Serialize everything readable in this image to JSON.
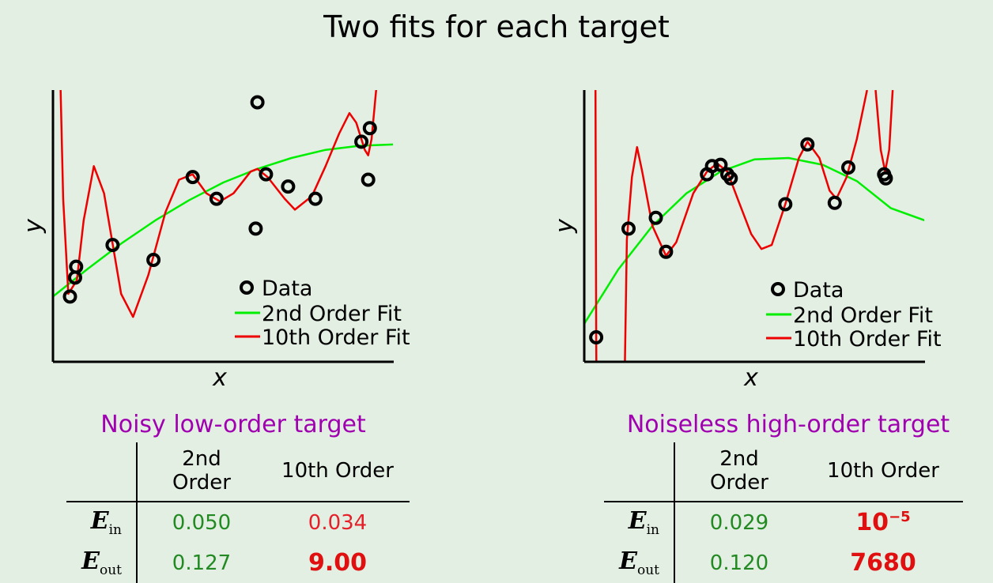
{
  "title": "Two fits for each target",
  "colors": {
    "background": "#e2efe2",
    "fit2": "#00ee00",
    "fit10": "#ee0000",
    "panel_title": "#a000b0",
    "good_value": "#238a23",
    "bad_value": "#e01010"
  },
  "chart_data": [
    {
      "type": "line",
      "title": "",
      "xlabel": "x",
      "ylabel": "y",
      "xlim": [
        0,
        1
      ],
      "ylim": [
        0,
        1
      ],
      "grid": false,
      "legend_placement": "bottom-right",
      "legend": [
        "Data",
        "2nd Order Fit",
        "10th Order Fit"
      ],
      "series": [
        {
          "name": "Data",
          "kind": "scatter",
          "points": [
            [
              0.05,
              0.24
            ],
            [
              0.065,
              0.31
            ],
            [
              0.068,
              0.35
            ],
            [
              0.175,
              0.43
            ],
            [
              0.295,
              0.375
            ],
            [
              0.41,
              0.68
            ],
            [
              0.48,
              0.6
            ],
            [
              0.595,
              0.49
            ],
            [
              0.6,
              0.955
            ],
            [
              0.625,
              0.69
            ],
            [
              0.69,
              0.645
            ],
            [
              0.77,
              0.6
            ],
            [
              0.905,
              0.81
            ],
            [
              0.925,
              0.67
            ],
            [
              0.93,
              0.86
            ]
          ]
        },
        {
          "name": "2nd Order Fit",
          "kind": "line",
          "points": [
            [
              0,
              0.24
            ],
            [
              0.1,
              0.34
            ],
            [
              0.2,
              0.435
            ],
            [
              0.3,
              0.52
            ],
            [
              0.4,
              0.595
            ],
            [
              0.5,
              0.66
            ],
            [
              0.6,
              0.71
            ],
            [
              0.7,
              0.75
            ],
            [
              0.8,
              0.78
            ],
            [
              0.9,
              0.795
            ],
            [
              1,
              0.8
            ]
          ]
        },
        {
          "name": "10th Order Fit",
          "kind": "line",
          "points": [
            [
              0.022,
              1.02
            ],
            [
              0.03,
              0.6
            ],
            [
              0.045,
              0.25
            ],
            [
              0.07,
              0.3
            ],
            [
              0.09,
              0.52
            ],
            [
              0.12,
              0.72
            ],
            [
              0.15,
              0.62
            ],
            [
              0.2,
              0.25
            ],
            [
              0.235,
              0.165
            ],
            [
              0.28,
              0.32
            ],
            [
              0.33,
              0.55
            ],
            [
              0.37,
              0.67
            ],
            [
              0.41,
              0.69
            ],
            [
              0.45,
              0.62
            ],
            [
              0.49,
              0.59
            ],
            [
              0.53,
              0.62
            ],
            [
              0.58,
              0.7
            ],
            [
              0.6,
              0.71
            ],
            [
              0.63,
              0.68
            ],
            [
              0.68,
              0.6
            ],
            [
              0.71,
              0.56
            ],
            [
              0.76,
              0.61
            ],
            [
              0.8,
              0.72
            ],
            [
              0.84,
              0.84
            ],
            [
              0.87,
              0.915
            ],
            [
              0.89,
              0.88
            ],
            [
              0.915,
              0.78
            ],
            [
              0.925,
              0.76
            ],
            [
              0.935,
              0.82
            ],
            [
              0.95,
              1.02
            ]
          ]
        }
      ]
    },
    {
      "type": "line",
      "title": "",
      "xlabel": "x",
      "ylabel": "y",
      "xlim": [
        0,
        1
      ],
      "ylim": [
        0,
        1
      ],
      "grid": false,
      "legend_placement": "bottom-right",
      "legend": [
        "Data",
        "2nd Order Fit",
        "10th Order Fit"
      ],
      "series": [
        {
          "name": "Data",
          "kind": "scatter",
          "points": [
            [
              0.035,
              0.09
            ],
            [
              0.13,
              0.49
            ],
            [
              0.21,
              0.53
            ],
            [
              0.24,
              0.405
            ],
            [
              0.36,
              0.69
            ],
            [
              0.375,
              0.72
            ],
            [
              0.4,
              0.725
            ],
            [
              0.42,
              0.69
            ],
            [
              0.43,
              0.675
            ],
            [
              0.59,
              0.58
            ],
            [
              0.655,
              0.8
            ],
            [
              0.735,
              0.585
            ],
            [
              0.775,
              0.715
            ],
            [
              0.88,
              0.69
            ],
            [
              0.885,
              0.675
            ]
          ]
        },
        {
          "name": "2nd Order Fit",
          "kind": "line",
          "points": [
            [
              0,
              0.14
            ],
            [
              0.1,
              0.34
            ],
            [
              0.2,
              0.5
            ],
            [
              0.3,
              0.62
            ],
            [
              0.4,
              0.7
            ],
            [
              0.5,
              0.745
            ],
            [
              0.6,
              0.75
            ],
            [
              0.7,
              0.725
            ],
            [
              0.8,
              0.665
            ],
            [
              0.9,
              0.565
            ],
            [
              1,
              0.52
            ]
          ]
        },
        {
          "name": "10th Order Fit",
          "kind": "line",
          "points": [
            [
              0.033,
              1.0
            ],
            [
              0.035,
              0.09
            ],
            [
              0.036,
              -0.1
            ],
            [
              0.118,
              -0.1
            ],
            [
              0.125,
              0.45
            ],
            [
              0.14,
              0.68
            ],
            [
              0.155,
              0.79
            ],
            [
              0.17,
              0.7
            ],
            [
              0.2,
              0.5
            ],
            [
              0.24,
              0.39
            ],
            [
              0.27,
              0.44
            ],
            [
              0.32,
              0.62
            ],
            [
              0.36,
              0.7
            ],
            [
              0.39,
              0.73
            ],
            [
              0.42,
              0.7
            ],
            [
              0.45,
              0.6
            ],
            [
              0.49,
              0.47
            ],
            [
              0.52,
              0.415
            ],
            [
              0.55,
              0.43
            ],
            [
              0.59,
              0.58
            ],
            [
              0.63,
              0.75
            ],
            [
              0.655,
              0.81
            ],
            [
              0.69,
              0.75
            ],
            [
              0.72,
              0.63
            ],
            [
              0.74,
              0.6
            ],
            [
              0.77,
              0.68
            ],
            [
              0.8,
              0.82
            ],
            [
              0.83,
              1.0
            ]
          ]
        },
        {
          "name": "10th Order Fit (right lobe)",
          "kind": "line",
          "points": [
            [
              0.855,
              1.0
            ],
            [
              0.87,
              0.78
            ],
            [
              0.883,
              0.7
            ],
            [
              0.895,
              0.78
            ],
            [
              0.905,
              1.0
            ]
          ]
        }
      ]
    }
  ],
  "panels": [
    {
      "name": "Noisy low-order target",
      "header": [
        "2nd Order",
        "10th Order"
      ],
      "rows": [
        {
          "label": "E",
          "sub": "in",
          "v2": "0.050",
          "v10": "0.034"
        },
        {
          "label": "E",
          "sub": "out",
          "v2": "0.127",
          "v10": "9.00"
        }
      ]
    },
    {
      "name": "Noiseless high-order target",
      "header": [
        "2nd Order",
        "10th Order"
      ],
      "rows": [
        {
          "label": "E",
          "sub": "in",
          "v2": "0.029",
          "v10": "10",
          "v10_exp": "−5"
        },
        {
          "label": "E",
          "sub": "out",
          "v2": "0.120",
          "v10": "7680"
        }
      ]
    }
  ]
}
